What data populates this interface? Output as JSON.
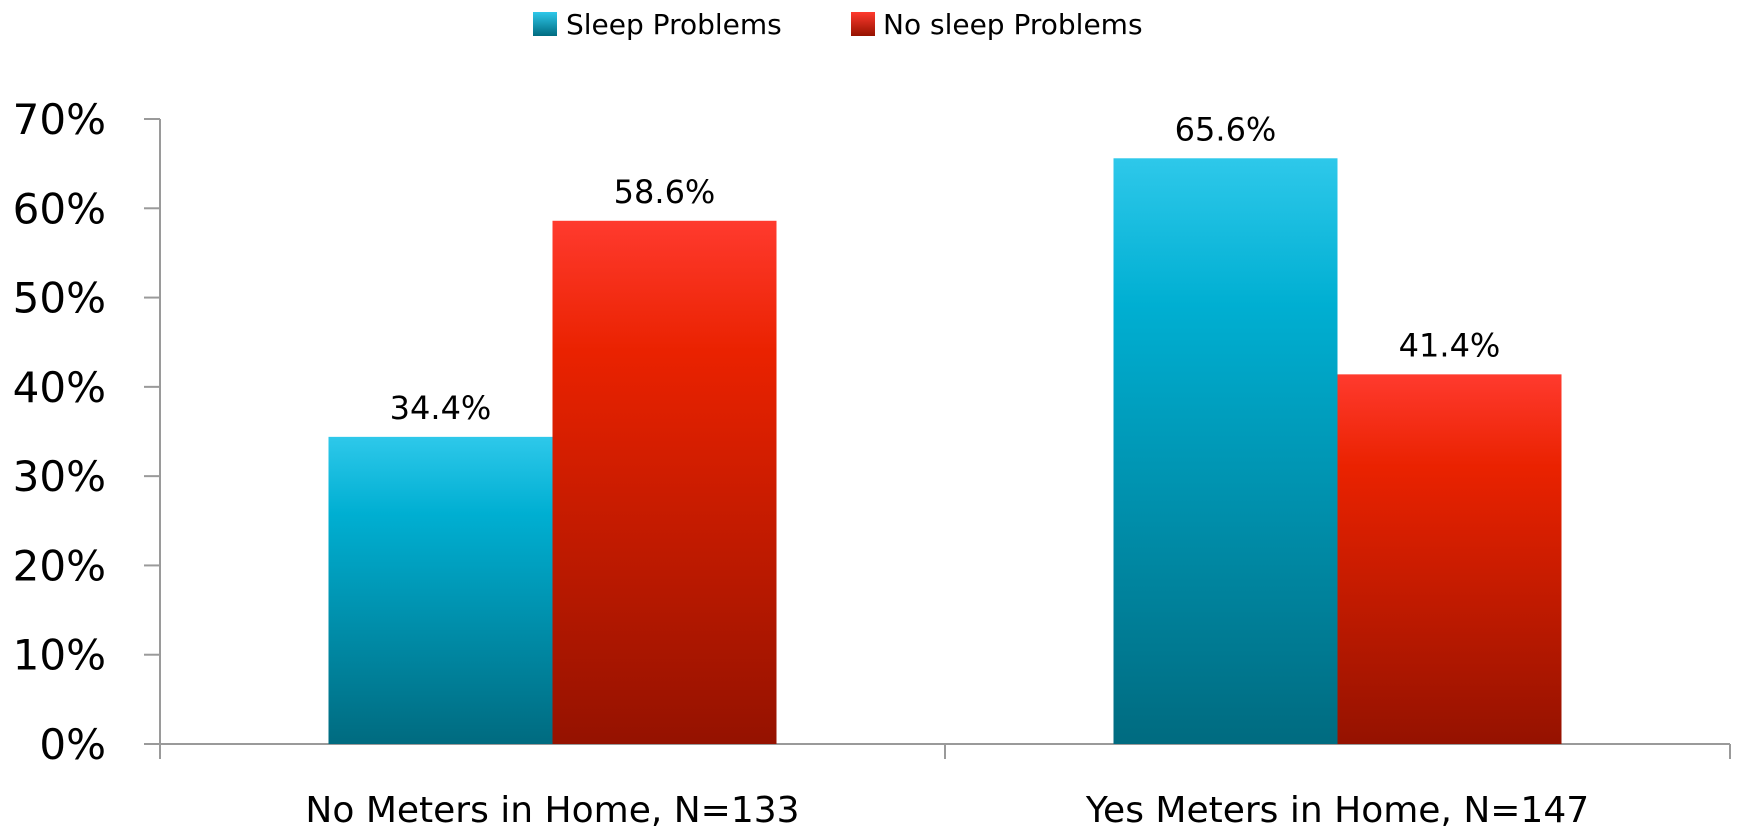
{
  "chart_data": {
    "type": "bar",
    "categories": [
      "No Meters in Home, N=133",
      "Yes Meters in Home, N=147"
    ],
    "series": [
      {
        "name": "Sleep Problems",
        "values": [
          34.4,
          65.6
        ],
        "labels": [
          "34.4%",
          "65.6%"
        ],
        "color_top": "#2ec8ea",
        "color_mid": "#00afd2",
        "color_bottom": "#006b80"
      },
      {
        "name": "No sleep Problems",
        "values": [
          58.6,
          41.4
        ],
        "labels": [
          "58.6%",
          "41.4%"
        ],
        "color_top": "#ff3a2e",
        "color_mid": "#ea2200",
        "color_bottom": "#951200"
      }
    ],
    "title": "",
    "xlabel": "",
    "ylabel": "",
    "ylim": [
      0,
      70
    ],
    "yticks": [
      0,
      10,
      20,
      30,
      40,
      50,
      60,
      70
    ],
    "ytick_labels": [
      "0%",
      "10%",
      "20%",
      "30%",
      "40%",
      "50%",
      "60%",
      "70%"
    ],
    "grid": false,
    "legend_position": "top-center",
    "axis_color": "#9a9a9a"
  }
}
